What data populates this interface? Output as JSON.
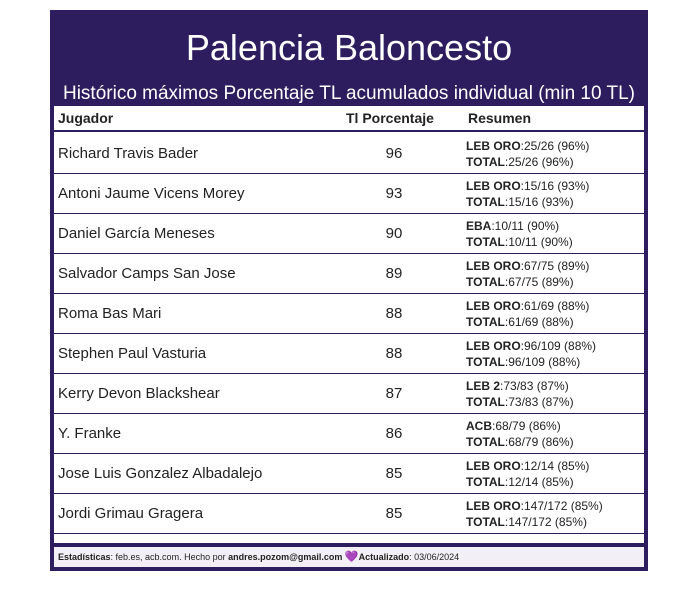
{
  "header": {
    "title": "Palencia Baloncesto",
    "subtitle": "Histórico máximos Porcentaje TL acumulados individual (min 10 TL)"
  },
  "table": {
    "columns": [
      "Jugador",
      "Tl Porcentaje",
      "Resumen"
    ],
    "rows": [
      {
        "name": "Richard Travis Bader",
        "pct": "96",
        "league": "LEB ORO",
        "league_val": ":25/26 (96%)",
        "total_label": "TOTAL",
        "total_val": ":25/26 (96%)"
      },
      {
        "name": "Antoni Jaume Vicens Morey",
        "pct": "93",
        "league": "LEB ORO",
        "league_val": ":15/16 (93%)",
        "total_label": "TOTAL",
        "total_val": ":15/16 (93%)"
      },
      {
        "name": "Daniel García Meneses",
        "pct": "90",
        "league": "EBA",
        "league_val": ":10/11 (90%)",
        "total_label": "TOTAL",
        "total_val": ":10/11 (90%)"
      },
      {
        "name": "Salvador Camps San Jose",
        "pct": "89",
        "league": "LEB ORO",
        "league_val": ":67/75 (89%)",
        "total_label": "TOTAL",
        "total_val": ":67/75 (89%)"
      },
      {
        "name": "Roma Bas Mari",
        "pct": "88",
        "league": "LEB ORO",
        "league_val": ":61/69 (88%)",
        "total_label": "TOTAL",
        "total_val": ":61/69 (88%)"
      },
      {
        "name": "Stephen Paul Vasturia",
        "pct": "88",
        "league": "LEB ORO",
        "league_val": ":96/109 (88%)",
        "total_label": "TOTAL",
        "total_val": ":96/109 (88%)"
      },
      {
        "name": "Kerry Devon Blackshear",
        "pct": "87",
        "league": "LEB 2",
        "league_val": ":73/83 (87%)",
        "total_label": "TOTAL",
        "total_val": ":73/83 (87%)"
      },
      {
        "name": "Y. Franke",
        "pct": "86",
        "league": "ACB",
        "league_val": ":68/79 (86%)",
        "total_label": "TOTAL",
        "total_val": ":68/79 (86%)"
      },
      {
        "name": "Jose Luis Gonzalez Albadalejo",
        "pct": "85",
        "league": "LEB ORO",
        "league_val": ":12/14 (85%)",
        "total_label": "TOTAL",
        "total_val": ":12/14 (85%)"
      },
      {
        "name": "Jordi Grimau Gragera",
        "pct": "85",
        "league": "LEB ORO",
        "league_val": ":147/172 (85%)",
        "total_label": "TOTAL",
        "total_val": ":147/172 (85%)"
      }
    ]
  },
  "footer": {
    "stats_label": "Estadísticas",
    "stats_text": ": feb.es, acb.com. Hecho por ",
    "author": "andres.pozom@gmail.com",
    "heart": "💜",
    "updated_label": "Actualizado",
    "updated_text": ": 03/06/2024"
  },
  "colors": {
    "header_bg": "#2e1d5e",
    "heart": "#9b4fd6"
  }
}
